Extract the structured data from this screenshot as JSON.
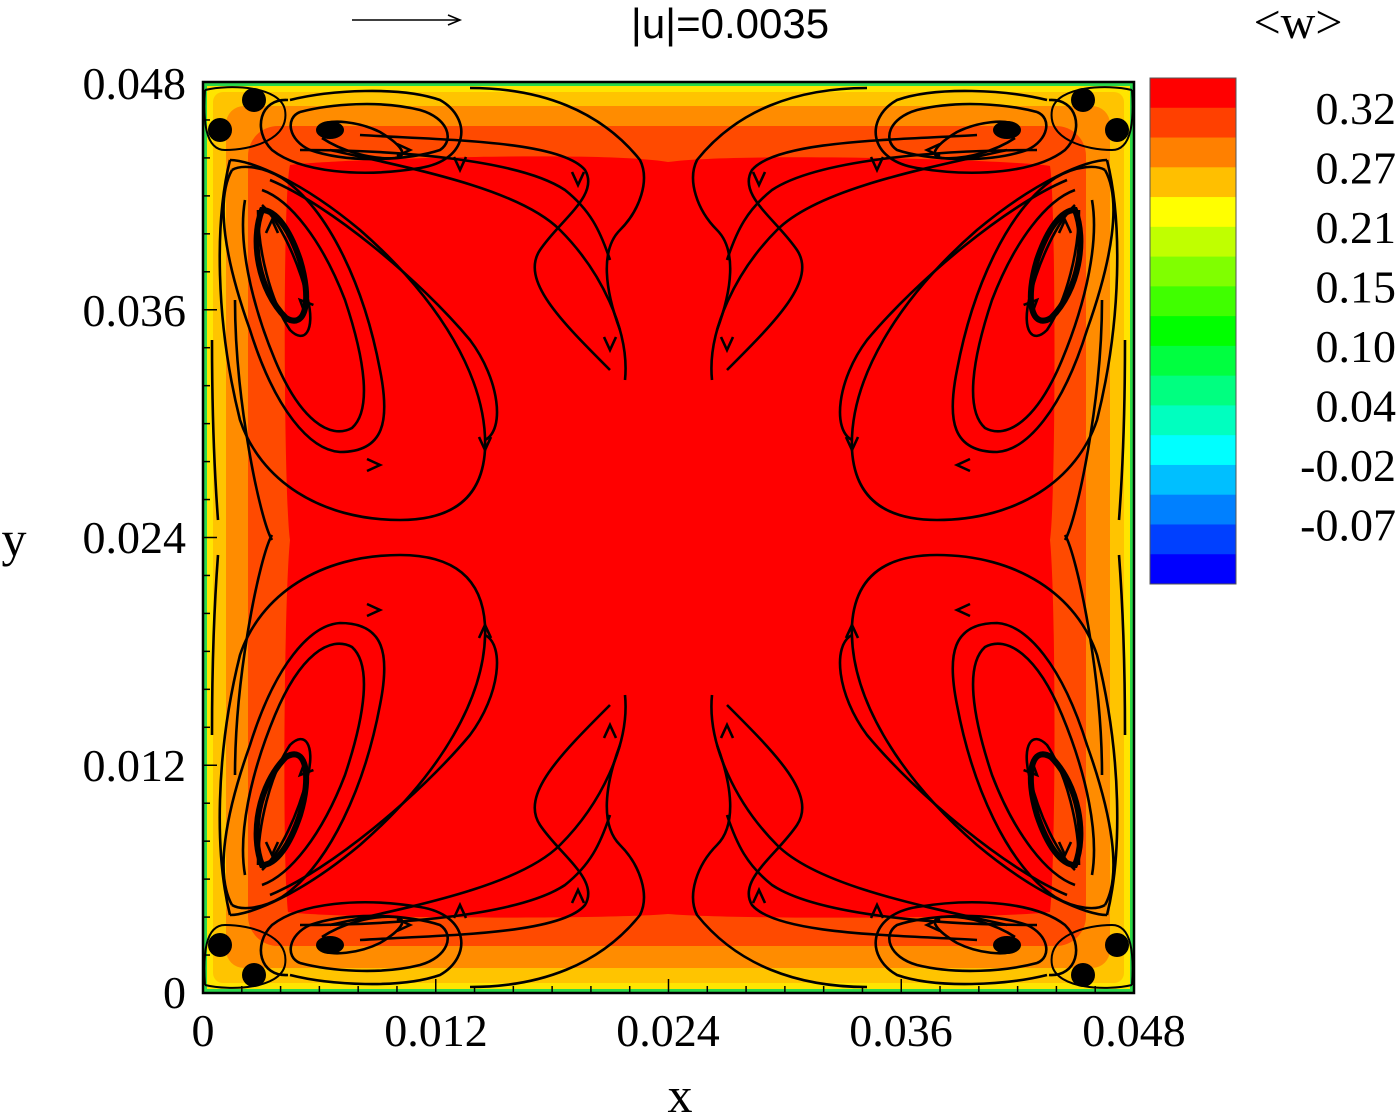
{
  "chart_data": {
    "type": "heatmap",
    "title": "",
    "xlabel": "x",
    "ylabel": "y",
    "xlim": [
      0,
      0.048
    ],
    "ylim": [
      0,
      0.048
    ],
    "x_ticks": [
      "0",
      "0.012",
      "0.024",
      "0.036",
      "0.048"
    ],
    "y_ticks": [
      "0",
      "0.012",
      "0.024",
      "0.036",
      "0.048"
    ],
    "x_tick_values": [
      0,
      0.012,
      0.024,
      0.036,
      0.048
    ],
    "y_tick_values": [
      0,
      0.012,
      0.024,
      0.036,
      0.048
    ],
    "vector_reference": {
      "label": "|u|=0.0035",
      "magnitude": 0.0035
    },
    "colorbar": {
      "title": "<w>",
      "tick_labels": [
        "0.32",
        "0.27",
        "0.21",
        "0.15",
        "0.10",
        "0.04",
        "-0.02",
        "-0.07"
      ],
      "levels_top_to_bottom": [
        "#ff0000",
        "#ff4000",
        "#ff8000",
        "#ffbf00",
        "#ffff00",
        "#c0ff00",
        "#80ff00",
        "#40ff00",
        "#00ff00",
        "#00ff40",
        "#00ff80",
        "#00ffbf",
        "#00ffff",
        "#00bfff",
        "#0080ff",
        "#0040ff",
        "#0000ff"
      ]
    },
    "field_description_levels": {
      "core": 0.33,
      "inner_band": 0.31,
      "middle_band": 0.28,
      "outer_band": 0.24,
      "wall": 0.0
    },
    "streamlines": "eight symmetric recirculation cells (two per wall), with corner vortices"
  }
}
